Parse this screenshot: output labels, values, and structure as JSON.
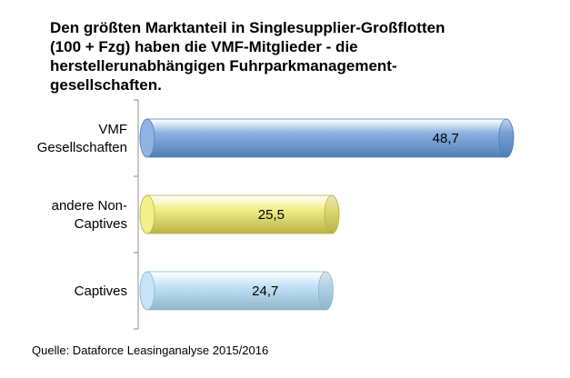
{
  "title_lines": [
    "Den größten Marktanteil in Singlesupplier-Großflotten",
    "(100 + Fzg) haben die VMF-Mitglieder - die",
    "herstellerunabhängigen Fuhrparkmanagement-",
    "gesellschaften."
  ],
  "source": "Quelle: Dataforce Leasinganalyse 2015/2016",
  "chart_data": {
    "type": "bar",
    "orientation": "horizontal",
    "categories": [
      [
        "VMF",
        "Gesellschaften"
      ],
      [
        "andere Non-",
        "Captives"
      ],
      [
        "Captives"
      ]
    ],
    "values": [
      48.7,
      25.5,
      24.7
    ],
    "value_labels": [
      "48,7",
      "25,5",
      "24,7"
    ],
    "colors": [
      "#8db4e2",
      "#f2f08a",
      "#c6e4f7"
    ],
    "edge_colors": [
      "#4f7fb5",
      "#b9b34a",
      "#8fb6cc"
    ],
    "xlim": [
      0,
      55
    ],
    "grid": false
  }
}
